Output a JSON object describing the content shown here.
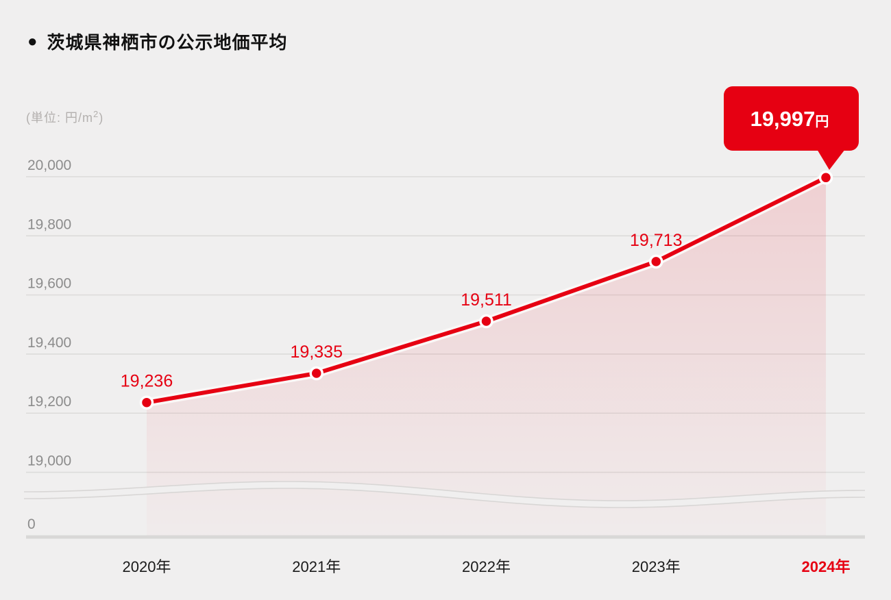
{
  "header": {
    "bullet": "●",
    "title": "茨城県神栖市の公示地価平均",
    "unit_prefix": "(単位: 円/m",
    "unit_sup": "2",
    "unit_suffix": ")"
  },
  "colors": {
    "background": "#f0efef",
    "accent_red": "#e60012",
    "gridline": "#dcdbda",
    "zero_axis": "#d9d8d7",
    "y_label_gray": "#8c8c8c",
    "x_label_black": "#1a1a1a",
    "unit_gray": "#b3b0ae",
    "wave_stroke": "#d8d6d5",
    "halo_white": "#faf7f6",
    "callout_text": "#ffffff"
  },
  "chart_data": {
    "type": "area",
    "title": "茨城県神栖市の公示地価平均",
    "unit": "円/m2",
    "categories": [
      "2020年",
      "2021年",
      "2022年",
      "2023年",
      "2024年"
    ],
    "values": [
      19236,
      19335,
      19511,
      19713,
      19997
    ],
    "point_labels": [
      "19,236",
      "19,335",
      "19,511",
      "19,713"
    ],
    "callout": {
      "number": "19,997",
      "unit": "円"
    },
    "highlight_category": "2024年",
    "xlabel": "",
    "ylabel": "円/m2",
    "y_ticks": [
      20000,
      19800,
      19600,
      19400,
      19200,
      19000
    ],
    "y_tick_labels": [
      "20,000",
      "19,800",
      "19,600",
      "19,400",
      "19,200",
      "19,000"
    ],
    "zero_tick_label": "0",
    "axis_break": true,
    "grid": true,
    "legend": false,
    "ylim_display": [
      19000,
      20050
    ],
    "series_color": "#e60012",
    "fill_style": "red gradient fading downward"
  }
}
